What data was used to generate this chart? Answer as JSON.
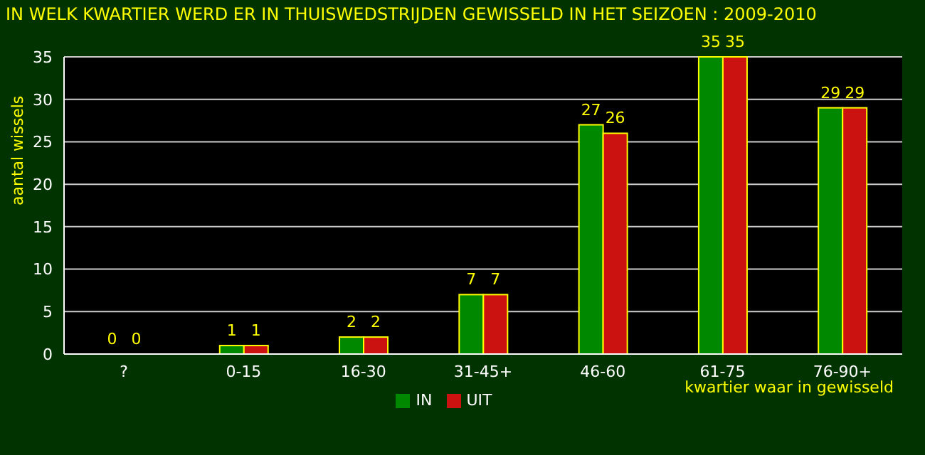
{
  "chart_data": {
    "type": "bar",
    "title": "IN WELK KWARTIER WERD ER IN THUISWEDSTRIJDEN GEWISSELD IN HET SEIZOEN : 2009-2010",
    "xlabel": "kwartier waar in gewisseld",
    "ylabel": "aantal wissels",
    "categories": [
      "?",
      "0-15",
      "16-30",
      "31-45+",
      "46-60",
      "61-75",
      "76-90+"
    ],
    "series": [
      {
        "name": "IN",
        "color": "#008800",
        "values": [
          0,
          1,
          2,
          7,
          27,
          35,
          29
        ]
      },
      {
        "name": "UIT",
        "color": "#cc1111",
        "values": [
          0,
          1,
          2,
          7,
          26,
          35,
          29
        ]
      }
    ],
    "ylim": [
      0,
      35
    ],
    "yticks": [
      0,
      5,
      10,
      15,
      20,
      25,
      30,
      35
    ],
    "grid": "y",
    "legend": "bottom",
    "data_labels": true
  }
}
